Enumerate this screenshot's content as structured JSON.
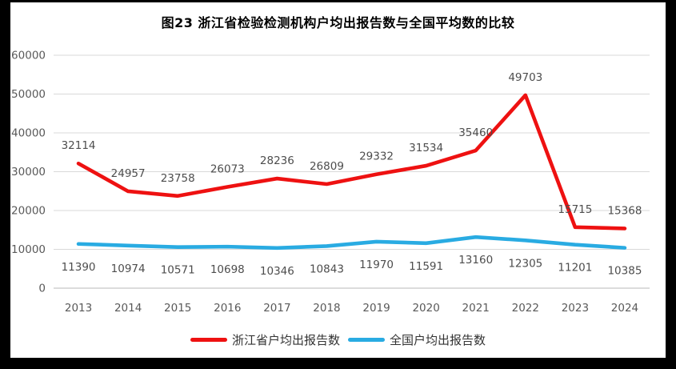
{
  "title": "图23  浙江省检验检测机构户均出报告数与全国平均数的比较",
  "chart_data": {
    "type": "line",
    "title": "图23  浙江省检验检测机构户均出报告数与全国平均数的比较",
    "categories": [
      "2013",
      "2014",
      "2015",
      "2016",
      "2017",
      "2018",
      "2019",
      "2020",
      "2021",
      "2022",
      "2023",
      "2024"
    ],
    "series": [
      {
        "name": "浙江省户均出报告数",
        "color": "#ee1111",
        "label_position": "above",
        "values": [
          32114,
          24957,
          23758,
          26073,
          28236,
          26809,
          29332,
          31534,
          35460,
          49703,
          15715,
          15368
        ]
      },
      {
        "name": "全国户均出报告数",
        "color": "#29abe2",
        "label_position": "below",
        "values": [
          11390,
          10974,
          10571,
          10698,
          10346,
          10843,
          11970,
          11591,
          13160,
          12305,
          11201,
          10385
        ]
      }
    ],
    "ylim": [
      0,
      60000
    ],
    "yticks": [
      0,
      10000,
      20000,
      30000,
      40000,
      50000,
      60000
    ],
    "grid": "horizontal",
    "legend_position": "bottom",
    "data_labels": true
  },
  "colors": {
    "grid": "#d9d9d9",
    "axis_line": "#c6c6c6",
    "axis_text": "#595959",
    "data_label_text": "#4d4d4d",
    "title_text": "#000000",
    "frame": "#000000",
    "canvas": "#ffffff"
  }
}
